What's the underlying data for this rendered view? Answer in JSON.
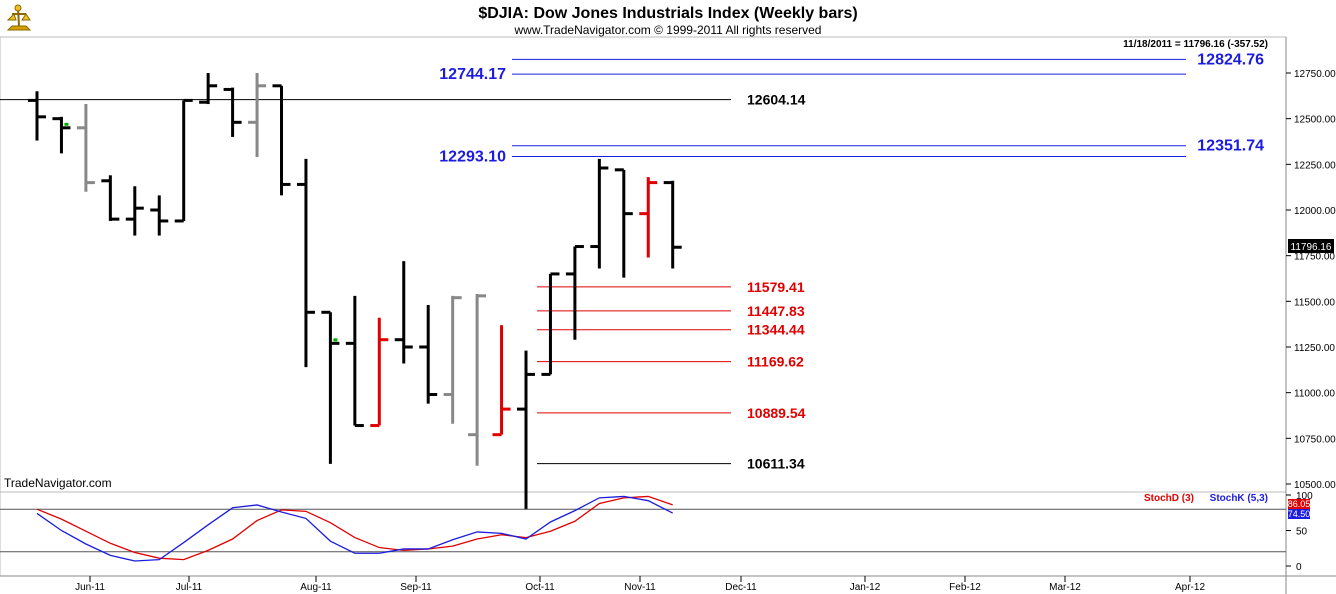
{
  "header": {
    "title": "$DJIA:  Dow Jones Industrials Index  (Weekly bars)",
    "subtitle": "www.TradeNavigator.com © 1999-2011 All rights reserved",
    "last_info": "11/18/2011 = 11796.16 (-357.52)",
    "watermark": "TradeNavigator.com",
    "last_price_tag": "11796.16"
  },
  "colors": {
    "bar_black": "#000000",
    "bar_gray": "#888888",
    "bar_red": "#e00000",
    "fib_blue": "#1c1ce0",
    "fib_red": "#e00000",
    "stochD": "#e00000",
    "stochK": "#1c1ce0",
    "green_dot": "#00b000"
  },
  "chart_data": [
    {
      "type": "ohlc",
      "title": "$DJIA:  Dow Jones Industrials Index  (Weekly bars)",
      "ylim": [
        10470,
        12920
      ],
      "y_ticks": [
        10500,
        10750,
        11000,
        11250,
        11500,
        11750,
        12000,
        12250,
        12500,
        12750
      ],
      "x_ticks": [
        "Jun-11",
        "Jul-11",
        "Aug-11",
        "Sep-11",
        "Oct-11",
        "Nov-11",
        "Dec-11",
        "Jan-12",
        "Feb-12",
        "Mar-12",
        "Apr-12"
      ],
      "bars": [
        {
          "o": 12600,
          "h": 12650,
          "l": 12380,
          "c": 12510,
          "color": "black"
        },
        {
          "o": 12500,
          "h": 12510,
          "l": 12310,
          "c": 12450,
          "color": "black",
          "dot": true
        },
        {
          "o": 12450,
          "h": 12580,
          "l": 12100,
          "c": 12150,
          "color": "gray"
        },
        {
          "o": 12160,
          "h": 12190,
          "l": 11940,
          "c": 11950,
          "color": "black"
        },
        {
          "o": 11950,
          "h": 12130,
          "l": 11860,
          "c": 12010,
          "color": "black"
        },
        {
          "o": 12000,
          "h": 12080,
          "l": 11860,
          "c": 11940,
          "color": "black"
        },
        {
          "o": 11940,
          "h": 12600,
          "l": 11940,
          "c": 12600,
          "color": "black"
        },
        {
          "o": 12590,
          "h": 12750,
          "l": 12580,
          "c": 12680,
          "color": "black"
        },
        {
          "o": 12660,
          "h": 12670,
          "l": 12400,
          "c": 12480,
          "color": "black"
        },
        {
          "o": 12480,
          "h": 12750,
          "l": 12290,
          "c": 12680,
          "color": "gray"
        },
        {
          "o": 12680,
          "h": 12680,
          "l": 12080,
          "c": 12140,
          "color": "black"
        },
        {
          "o": 12140,
          "h": 12280,
          "l": 11140,
          "c": 11440,
          "color": "black"
        },
        {
          "o": 11440,
          "h": 11440,
          "l": 10610,
          "c": 11270,
          "color": "black",
          "dot": true
        },
        {
          "o": 11270,
          "h": 11530,
          "l": 10820,
          "c": 10820,
          "color": "black"
        },
        {
          "o": 10820,
          "h": 11410,
          "l": 10820,
          "c": 11290,
          "color": "red"
        },
        {
          "o": 11290,
          "h": 11720,
          "l": 11160,
          "c": 11250,
          "color": "black"
        },
        {
          "o": 11250,
          "h": 11480,
          "l": 10940,
          "c": 10990,
          "color": "black"
        },
        {
          "o": 10990,
          "h": 11530,
          "l": 10830,
          "c": 11520,
          "color": "gray"
        },
        {
          "o": 10770,
          "h": 11540,
          "l": 10600,
          "c": 11530,
          "color": "gray"
        },
        {
          "o": 10770,
          "h": 11370,
          "l": 10770,
          "c": 10910,
          "color": "red"
        },
        {
          "o": 10910,
          "h": 11230,
          "l": 10360,
          "c": 11100,
          "color": "black"
        },
        {
          "o": 11100,
          "h": 11650,
          "l": 11100,
          "c": 11650,
          "color": "black"
        },
        {
          "o": 11650,
          "h": 11800,
          "l": 11290,
          "c": 11800,
          "color": "black"
        },
        {
          "o": 11800,
          "h": 12280,
          "l": 11680,
          "c": 12230,
          "color": "black"
        },
        {
          "o": 12220,
          "h": 12220,
          "l": 11630,
          "c": 11980,
          "color": "black"
        },
        {
          "o": 11980,
          "h": 12180,
          "l": 11740,
          "c": 12150,
          "color": "red"
        },
        {
          "o": 12150,
          "h": 12160,
          "l": 11680,
          "c": 11796.16,
          "color": "black"
        }
      ],
      "levels": [
        {
          "value": 12824.76,
          "label": "12824.76",
          "color": "blue"
        },
        {
          "value": 12744.17,
          "label": "12744.17",
          "color": "blue"
        },
        {
          "value": 12604.14,
          "label": "12604.14",
          "color": "black"
        },
        {
          "value": 12351.74,
          "label": "12351.74",
          "color": "blue"
        },
        {
          "value": 12293.1,
          "label": "12293.10",
          "color": "blue"
        },
        {
          "value": 11579.41,
          "label": "11579.41",
          "color": "red"
        },
        {
          "value": 11447.83,
          "label": "11447.83",
          "color": "red"
        },
        {
          "value": 11344.44,
          "label": "11344.44",
          "color": "red"
        },
        {
          "value": 11169.62,
          "label": "11169.62",
          "color": "red"
        },
        {
          "value": 10889.54,
          "label": "10889.54",
          "color": "red"
        },
        {
          "value": 10611.34,
          "label": "10611.34",
          "color": "black"
        }
      ]
    },
    {
      "type": "line",
      "ylim": [
        0,
        100
      ],
      "y_ticks": [
        0,
        50,
        100
      ],
      "reference_lines": [
        80,
        20
      ],
      "series": [
        {
          "name": "StochD (3)",
          "color": "red",
          "last_label": "86.05",
          "values": [
            80,
            66,
            49,
            32,
            19,
            11,
            9,
            22,
            38,
            64,
            79,
            77,
            61,
            40,
            26,
            22,
            24,
            28,
            38,
            44,
            40,
            49,
            63,
            88,
            96,
            98,
            86.05
          ]
        },
        {
          "name": "StochK (5,3)",
          "color": "blue",
          "last_label": "74.50",
          "values": [
            74,
            50,
            31,
            15,
            7,
            9,
            33,
            58,
            82,
            86,
            76,
            67,
            35,
            18,
            18,
            24,
            24,
            37,
            48,
            46,
            38,
            62,
            78,
            96,
            98,
            92,
            74.5
          ]
        }
      ]
    }
  ]
}
